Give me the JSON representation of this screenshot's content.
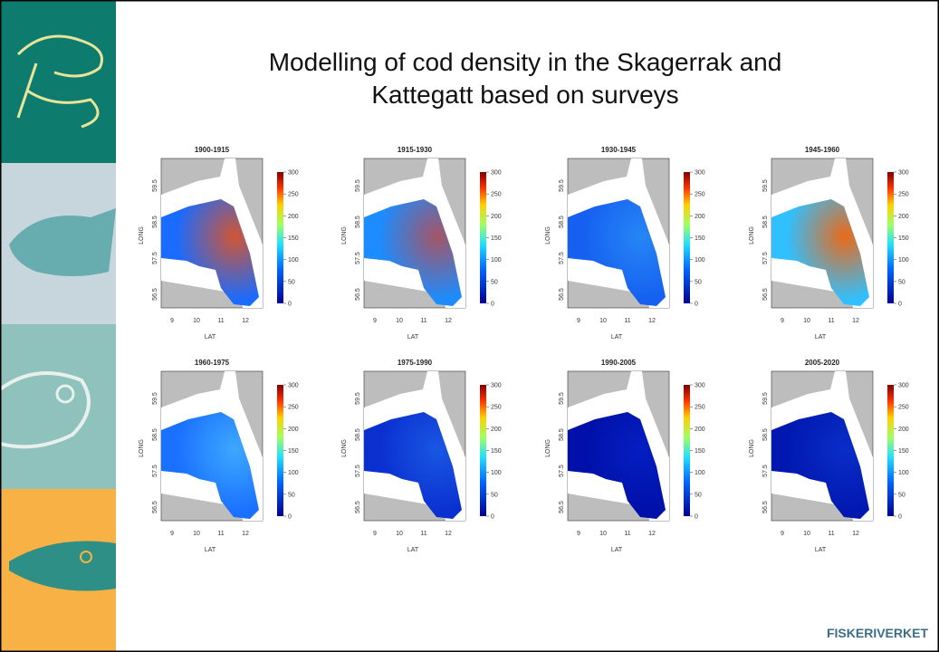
{
  "title_lines": [
    "Modelling of cod density in the Skagerrak and",
    "Kattegatt based on surveys"
  ],
  "panels": [
    "1900-1915",
    "1915-1930",
    "1930-1945",
    "1945-1960",
    "1960-1975",
    "1975-1990",
    "1990-2005",
    "2005-2020"
  ],
  "x_axis_label": "LAT",
  "y_axis_label": "LONG",
  "x_ticks": [
    9,
    10,
    11,
    12
  ],
  "y_ticks": [
    59.5,
    58.5,
    57.5,
    56.5
  ],
  "colorbar_ticks": [
    300,
    250,
    200,
    150,
    100,
    50,
    0
  ],
  "logo": "FISKERIVERKET"
}
